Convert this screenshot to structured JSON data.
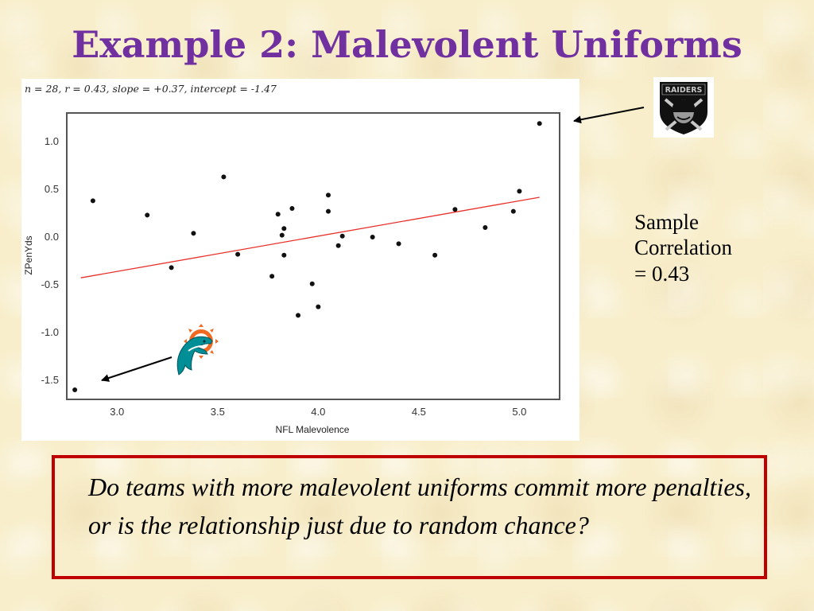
{
  "slide": {
    "title": "Example 2:  Malevolent Uniforms",
    "side_note_lines": [
      "Sample",
      "Correlation",
      "=  0.43"
    ],
    "question": "Do teams with more malevolent uniforms commit more penalties, or is the relationship just due to random chance?",
    "accent_color": "#7030a0",
    "box_color": "#c00000"
  },
  "logos": {
    "raiders": {
      "icon": "raiders-shield-icon",
      "text": "RAIDERS"
    },
    "dolphins": {
      "icon": "dolphins-logo-icon"
    }
  },
  "chart_data": {
    "type": "scatter",
    "stats_text": "n = 28, r = 0.43, slope = +0.37, intercept = -1.47",
    "xlabel": "NFL  Malevolence",
    "ylabel": "ZPenYds",
    "xlim": [
      2.75,
      5.2
    ],
    "ylim": [
      -1.7,
      1.3
    ],
    "x_ticks": [
      "3.0",
      "3.5",
      "4.0",
      "4.5",
      "5.0"
    ],
    "y_ticks": [
      "1.0",
      "0.5",
      "0.0",
      "-0.5",
      "-1.0",
      "-1.5"
    ],
    "grid": false,
    "regression_line": {
      "slope": 0.37,
      "intercept": -1.47,
      "color": "#e8302a"
    },
    "points": [
      {
        "x": 2.79,
        "y": -1.6
      },
      {
        "x": 2.88,
        "y": 0.38
      },
      {
        "x": 3.15,
        "y": 0.23
      },
      {
        "x": 3.27,
        "y": -0.32
      },
      {
        "x": 3.38,
        "y": 0.04
      },
      {
        "x": 3.53,
        "y": 0.63
      },
      {
        "x": 3.6,
        "y": -0.18
      },
      {
        "x": 3.77,
        "y": -0.41
      },
      {
        "x": 3.8,
        "y": 0.24
      },
      {
        "x": 3.82,
        "y": 0.02
      },
      {
        "x": 3.83,
        "y": 0.09
      },
      {
        "x": 3.83,
        "y": -0.19
      },
      {
        "x": 3.87,
        "y": 0.3
      },
      {
        "x": 3.9,
        "y": -0.82
      },
      {
        "x": 3.97,
        "y": -0.49
      },
      {
        "x": 4.0,
        "y": -0.73
      },
      {
        "x": 4.05,
        "y": 0.44
      },
      {
        "x": 4.05,
        "y": 0.27
      },
      {
        "x": 4.1,
        "y": -0.09
      },
      {
        "x": 4.12,
        "y": 0.01
      },
      {
        "x": 4.27,
        "y": 0.0
      },
      {
        "x": 4.4,
        "y": -0.07
      },
      {
        "x": 4.58,
        "y": -0.19
      },
      {
        "x": 4.68,
        "y": 0.29
      },
      {
        "x": 4.83,
        "y": 0.1
      },
      {
        "x": 4.97,
        "y": 0.27
      },
      {
        "x": 5.0,
        "y": 0.48
      },
      {
        "x": 5.1,
        "y": 1.19
      }
    ]
  }
}
